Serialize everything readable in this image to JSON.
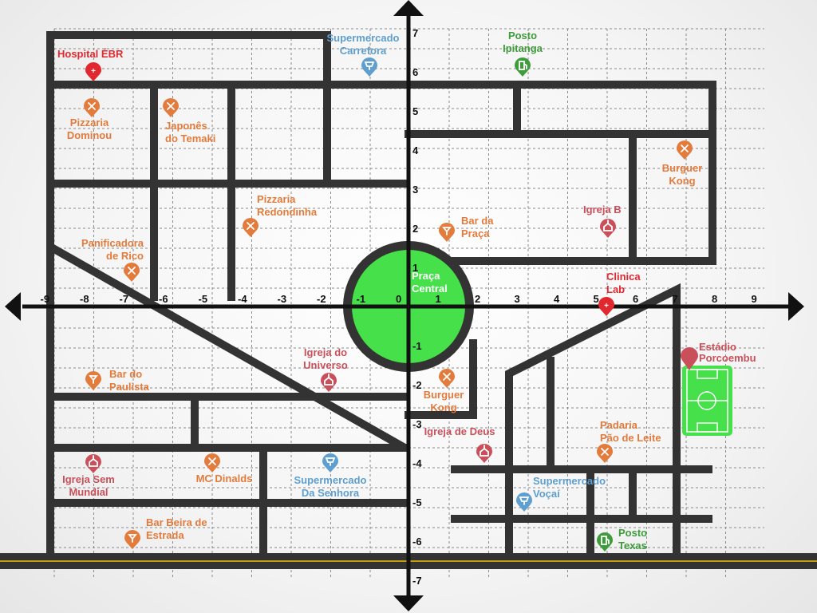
{
  "axes": {
    "x_ticks": [
      "-9",
      "-8",
      "-7",
      "-6",
      "-5",
      "-4",
      "-3",
      "-2",
      "-1",
      "0",
      "1",
      "2",
      "3",
      "4",
      "5",
      "6",
      "7",
      "8",
      "9"
    ],
    "y_ticks": [
      "7",
      "6",
      "5",
      "4",
      "3",
      "2",
      "1",
      "-1",
      "-2",
      "-3",
      "-4",
      "-5",
      "-6",
      "-7"
    ]
  },
  "plaza": {
    "label_line1": "Praça",
    "label_line2": "Central",
    "color": "#46e04a"
  },
  "stadium": {
    "line1": "Estádio",
    "line2": "Porcoembu",
    "color": "#46e04a"
  },
  "colors": {
    "hospital": "#e0282e",
    "market": "#5e9fcf",
    "gas": "#3e9c3a",
    "food": "#e27b3b",
    "church": "#c9505a",
    "road": "#333333"
  },
  "places": [
    {
      "id": "hospital-ebr",
      "category": "hospital",
      "icon": "hospital-pin-icon",
      "line1": "Hospital ÉBR",
      "line2": ""
    },
    {
      "id": "supermercado-carrefora",
      "category": "market",
      "icon": "cart-pin-icon",
      "line1": "Supermercado",
      "line2": "Carrefora"
    },
    {
      "id": "posto-ipitanga",
      "category": "gas",
      "icon": "fuel-pin-icon",
      "line1": "Posto",
      "line2": "Ipitanga"
    },
    {
      "id": "pizzaria-dominou",
      "category": "food",
      "icon": "fork-knife-pin-icon",
      "line1": "Pizzaria",
      "line2": "Dominou"
    },
    {
      "id": "japones-temaki",
      "category": "food",
      "icon": "fork-knife-pin-icon",
      "line1": "Japonês",
      "line2": "do Temaki"
    },
    {
      "id": "burguer-kong-ne",
      "category": "food",
      "icon": "fork-knife-pin-icon",
      "line1": "Burguer",
      "line2": "Kong"
    },
    {
      "id": "pizzaria-redondinha",
      "category": "food",
      "icon": "fork-knife-pin-icon",
      "line1": "Pizzaria",
      "line2": "Redondinha"
    },
    {
      "id": "bar-da-praca",
      "category": "food",
      "icon": "drink-pin-icon",
      "line1": "Bar da",
      "line2": "Praça"
    },
    {
      "id": "igreja-b",
      "category": "church",
      "icon": "church-pin-icon",
      "line1": "Igreja B",
      "line2": ""
    },
    {
      "id": "panificadora-rico",
      "category": "food",
      "icon": "fork-knife-pin-icon",
      "line1": "Panificadora",
      "line2": "de Rico"
    },
    {
      "id": "clinica-lab",
      "category": "hospital",
      "icon": "clinic-pin-icon",
      "line1": "Clinica",
      "line2": "Lab"
    },
    {
      "id": "igreja-universo",
      "category": "church",
      "icon": "church-pin-icon",
      "line1": "Igreja do",
      "line2": "Universo"
    },
    {
      "id": "bar-paulista",
      "category": "food",
      "icon": "drink-pin-icon",
      "line1": "Bar do",
      "line2": "Paulista"
    },
    {
      "id": "burguer-kong-s",
      "category": "food",
      "icon": "fork-knife-pin-icon",
      "line1": "Burguer",
      "line2": "Kong"
    },
    {
      "id": "igreja-deus",
      "category": "church",
      "icon": "church-pin-icon",
      "line1": "Igreja de Deus",
      "line2": ""
    },
    {
      "id": "padaria-pao",
      "category": "food",
      "icon": "fork-knife-pin-icon",
      "line1": "Padaria",
      "line2": "Pão de Leite"
    },
    {
      "id": "igreja-sem-mundial",
      "category": "church",
      "icon": "church-pin-icon",
      "line1": "Igreja Sem",
      "line2": "Mundial"
    },
    {
      "id": "mc-dinalds",
      "category": "food",
      "icon": "fork-knife-pin-icon",
      "line1": "MC Dinalds",
      "line2": ""
    },
    {
      "id": "supermercado-senhora",
      "category": "market",
      "icon": "cart-pin-icon",
      "line1": "Supermercado",
      "line2": "Da Senhora"
    },
    {
      "id": "supermercado-vocai",
      "category": "market",
      "icon": "cart-pin-icon",
      "line1": "Supermercado",
      "line2": "Voçaí"
    },
    {
      "id": "bar-beira-estrada",
      "category": "food",
      "icon": "drink-pin-icon",
      "line1": "Bar Beira de",
      "line2": "Estrada"
    },
    {
      "id": "posto-texas",
      "category": "gas",
      "icon": "fuel-pin-icon",
      "line1": "Posto",
      "line2": "Texas"
    }
  ]
}
